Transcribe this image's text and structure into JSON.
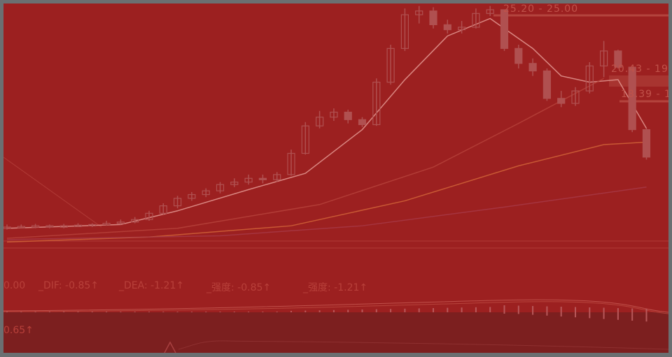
{
  "chart_data": {
    "type": "candlestick",
    "ylim": [
      6.3,
      25.6
    ],
    "candles_ohlc": [
      [
        7.6,
        7.9,
        7.5,
        7.7
      ],
      [
        7.7,
        7.9,
        7.6,
        7.75
      ],
      [
        7.75,
        7.95,
        7.6,
        7.8
      ],
      [
        7.8,
        7.9,
        7.6,
        7.7
      ],
      [
        7.7,
        7.95,
        7.6,
        7.8
      ],
      [
        7.8,
        8.0,
        7.7,
        7.85
      ],
      [
        7.85,
        8.0,
        7.7,
        7.9
      ],
      [
        7.9,
        8.2,
        7.8,
        8.0
      ],
      [
        8.0,
        8.3,
        7.9,
        8.1
      ],
      [
        8.1,
        8.5,
        8.0,
        8.3
      ],
      [
        8.3,
        9.0,
        8.2,
        8.8
      ],
      [
        8.8,
        9.6,
        8.7,
        9.4
      ],
      [
        9.4,
        10.2,
        9.2,
        10.0
      ],
      [
        10.0,
        10.5,
        9.8,
        10.3
      ],
      [
        10.3,
        10.8,
        10.1,
        10.6
      ],
      [
        10.6,
        11.3,
        10.4,
        11.1
      ],
      [
        11.1,
        11.6,
        10.9,
        11.3
      ],
      [
        11.3,
        11.9,
        11.1,
        11.6
      ],
      [
        11.6,
        11.9,
        11.2,
        11.5
      ],
      [
        11.5,
        12.1,
        11.3,
        11.9
      ],
      [
        11.9,
        13.9,
        11.8,
        13.6
      ],
      [
        13.6,
        16.1,
        13.5,
        15.8
      ],
      [
        15.8,
        17.0,
        15.6,
        16.5
      ],
      [
        16.5,
        17.2,
        16.2,
        16.9
      ],
      [
        16.9,
        17.1,
        16.0,
        16.3
      ],
      [
        16.3,
        16.5,
        15.7,
        15.9
      ],
      [
        15.9,
        19.6,
        15.8,
        19.3
      ],
      [
        19.3,
        22.3,
        19.1,
        22.0
      ],
      [
        22.0,
        25.2,
        21.8,
        24.7
      ],
      [
        24.7,
        25.4,
        24.0,
        25.0
      ],
      [
        25.0,
        25.3,
        23.6,
        23.9
      ],
      [
        23.9,
        24.3,
        23.2,
        23.5
      ],
      [
        23.5,
        24.2,
        23.2,
        23.7
      ],
      [
        23.7,
        25.2,
        23.6,
        24.8
      ],
      [
        24.8,
        25.4,
        24.6,
        25.1
      ],
      [
        25.1,
        25.1,
        21.8,
        22.0
      ],
      [
        22.0,
        22.3,
        20.4,
        20.8
      ],
      [
        20.8,
        21.2,
        19.8,
        20.2
      ],
      [
        20.2,
        20.4,
        17.8,
        18.0
      ],
      [
        18.0,
        18.6,
        17.3,
        17.6
      ],
      [
        17.6,
        18.9,
        17.4,
        18.6
      ],
      [
        18.6,
        20.9,
        18.4,
        20.6
      ],
      [
        20.6,
        22.6,
        19.7,
        21.8
      ],
      [
        21.8,
        21.9,
        20.4,
        20.5
      ],
      [
        20.5,
        20.5,
        15.3,
        15.5
      ],
      [
        15.5,
        15.6,
        13.1,
        13.3
      ]
    ],
    "lines": [
      {
        "color": "#e8a09a",
        "points": [
          [
            0,
            7.6
          ],
          [
            8,
            7.9
          ],
          [
            12,
            9.0
          ],
          [
            17,
            10.7
          ],
          [
            21,
            12.0
          ],
          [
            25,
            15.5
          ],
          [
            28,
            19.5
          ],
          [
            31,
            23.0
          ],
          [
            34,
            24.4
          ],
          [
            37,
            22.0
          ],
          [
            39,
            19.8
          ],
          [
            41,
            19.3
          ],
          [
            43,
            19.5
          ],
          [
            45,
            15.6
          ]
        ]
      },
      {
        "color": "#d4683a",
        "points": [
          [
            0,
            6.5
          ],
          [
            10,
            6.9
          ],
          [
            20,
            7.8
          ],
          [
            28,
            9.8
          ],
          [
            36,
            12.6
          ],
          [
            42,
            14.3
          ],
          [
            45,
            14.5
          ]
        ]
      },
      {
        "color": "#b8443c",
        "points": [
          [
            0,
            6.8
          ],
          [
            12,
            7.6
          ],
          [
            22,
            9.5
          ],
          [
            30,
            12.5
          ],
          [
            36,
            16.0
          ],
          [
            42,
            19.6
          ]
        ]
      },
      {
        "color": "#a83a48",
        "points": [
          [
            0,
            6.7
          ],
          [
            15,
            7.0
          ],
          [
            25,
            7.8
          ],
          [
            35,
            9.3
          ],
          [
            45,
            10.9
          ]
        ]
      }
    ],
    "price_labels": [
      "25.20 - 25.00",
      "20.43 - 19",
      "18.39 - 1"
    ],
    "indicator_labels": [
      "0.00",
      "_DIF: -0.85↑",
      "_DEA: -1.21↑",
      "_强度: -0.85↑",
      "_强度: -1.21↑"
    ],
    "lower_label": "0.65↑",
    "colors": {
      "background": "#9c2020",
      "lower_panel": "#7c1f1f",
      "frame": "#6b6f71",
      "candle": "#b05050"
    }
  }
}
